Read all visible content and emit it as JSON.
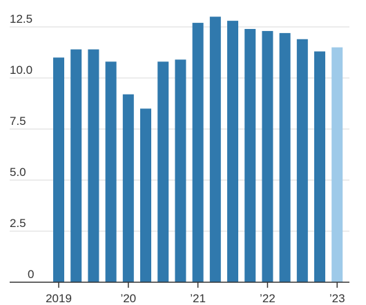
{
  "chart_data": {
    "type": "bar",
    "title": "",
    "xlabel": "",
    "ylabel": "",
    "ylim": [
      0,
      12.5
    ],
    "yticks": [
      "0",
      "2.5",
      "5.0",
      "7.5",
      "10.0",
      "12.5"
    ],
    "categories": [
      "2019 Q1",
      "2019 Q2",
      "2019 Q3",
      "2019 Q4",
      "2020 Q1",
      "2020 Q2",
      "2020 Q3",
      "2020 Q4",
      "2021 Q1",
      "2021 Q2",
      "2021 Q3",
      "2021 Q4",
      "2022 Q1",
      "2022 Q2",
      "2022 Q3",
      "2022 Q4",
      "2023 Q1"
    ],
    "values": [
      11.0,
      11.4,
      11.4,
      10.8,
      9.2,
      8.5,
      10.8,
      10.9,
      12.7,
      13.0,
      12.8,
      12.4,
      12.3,
      12.2,
      11.9,
      11.3,
      11.5
    ],
    "xtick_labels": [
      "2019",
      "’20",
      "’21",
      "’22",
      "’23"
    ],
    "colors": {
      "bar": "#3079ad",
      "highlight": "#9ecae9"
    },
    "highlight_index": 16,
    "grid": true,
    "legend": "none"
  }
}
